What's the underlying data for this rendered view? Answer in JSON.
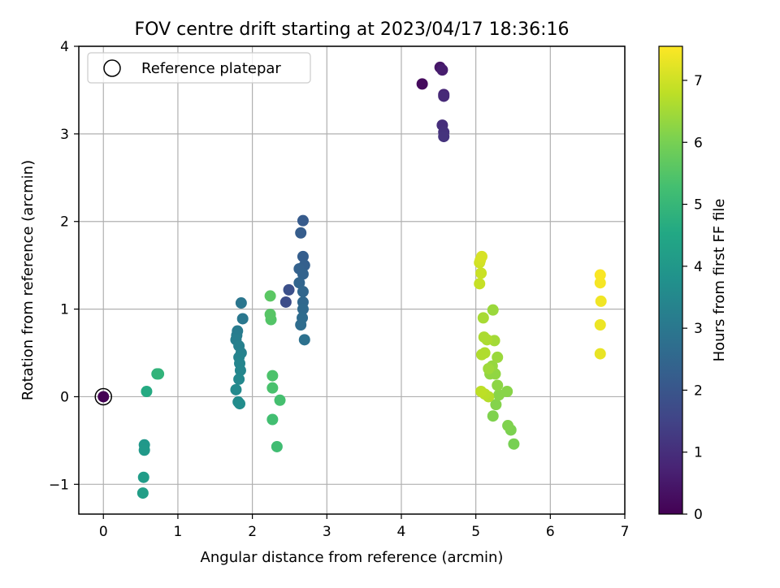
{
  "chart_data": {
    "type": "scatter",
    "title": "FOV centre drift starting at 2023/04/17 18:36:16",
    "xlabel": "Angular distance from reference (arcmin)",
    "ylabel": "Rotation from reference (arcmin)",
    "xlim": [
      -0.33,
      7.0
    ],
    "ylim": [
      -1.34,
      4.0
    ],
    "xticks": [
      0,
      1,
      2,
      3,
      4,
      5,
      6,
      7
    ],
    "yticks": [
      -1,
      0,
      1,
      2,
      3,
      4
    ],
    "xtick_labels": [
      "0",
      "1",
      "2",
      "3",
      "4",
      "5",
      "6",
      "7"
    ],
    "ytick_labels": [
      "−1",
      "0",
      "1",
      "2",
      "3",
      "4"
    ],
    "grid": true,
    "legend": {
      "placement": "top-left",
      "label": "Reference platepar"
    },
    "colormap": "viridis",
    "colorbar": {
      "label": "Hours from first FF file",
      "range": [
        0,
        7.55
      ],
      "ticks": [
        0,
        1,
        2,
        3,
        4,
        5,
        6,
        7
      ],
      "tick_labels": [
        "0",
        "1",
        "2",
        "3",
        "4",
        "5",
        "6",
        "7"
      ]
    },
    "reference_point": {
      "x": 0,
      "y": 0
    },
    "points": [
      {
        "x": 0.0,
        "y": 0.0,
        "c": 0.0
      },
      {
        "x": 4.28,
        "y": 3.57,
        "c": 0.2
      },
      {
        "x": 4.52,
        "y": 3.76,
        "c": 0.45
      },
      {
        "x": 4.55,
        "y": 3.73,
        "c": 0.6
      },
      {
        "x": 4.57,
        "y": 3.45,
        "c": 0.8
      },
      {
        "x": 4.57,
        "y": 3.43,
        "c": 0.9
      },
      {
        "x": 4.55,
        "y": 3.1,
        "c": 1.0
      },
      {
        "x": 4.57,
        "y": 3.02,
        "c": 1.05
      },
      {
        "x": 4.57,
        "y": 2.97,
        "c": 1.1
      },
      {
        "x": 2.45,
        "y": 1.08,
        "c": 1.75
      },
      {
        "x": 2.49,
        "y": 1.22,
        "c": 1.85
      },
      {
        "x": 2.68,
        "y": 2.01,
        "c": 2.15
      },
      {
        "x": 2.65,
        "y": 1.87,
        "c": 2.2
      },
      {
        "x": 2.68,
        "y": 1.6,
        "c": 2.25
      },
      {
        "x": 2.7,
        "y": 1.5,
        "c": 2.3
      },
      {
        "x": 2.63,
        "y": 1.46,
        "c": 2.35
      },
      {
        "x": 2.68,
        "y": 1.4,
        "c": 2.4
      },
      {
        "x": 2.63,
        "y": 1.3,
        "c": 2.45
      },
      {
        "x": 2.68,
        "y": 1.2,
        "c": 2.5
      },
      {
        "x": 2.68,
        "y": 1.08,
        "c": 2.55
      },
      {
        "x": 2.68,
        "y": 1.0,
        "c": 2.6
      },
      {
        "x": 2.67,
        "y": 0.9,
        "c": 2.65
      },
      {
        "x": 2.65,
        "y": 0.82,
        "c": 2.7
      },
      {
        "x": 2.7,
        "y": 0.65,
        "c": 2.8
      },
      {
        "x": 1.85,
        "y": 1.07,
        "c": 2.95
      },
      {
        "x": 1.87,
        "y": 0.89,
        "c": 3.0
      },
      {
        "x": 1.8,
        "y": 0.75,
        "c": 3.1
      },
      {
        "x": 1.79,
        "y": 0.7,
        "c": 3.15
      },
      {
        "x": 1.78,
        "y": 0.65,
        "c": 3.2
      },
      {
        "x": 1.82,
        "y": 0.58,
        "c": 3.25
      },
      {
        "x": 1.85,
        "y": 0.5,
        "c": 3.3
      },
      {
        "x": 1.82,
        "y": 0.45,
        "c": 3.35
      },
      {
        "x": 1.83,
        "y": 0.38,
        "c": 3.4
      },
      {
        "x": 1.84,
        "y": 0.3,
        "c": 3.45
      },
      {
        "x": 1.82,
        "y": 0.2,
        "c": 3.5
      },
      {
        "x": 1.78,
        "y": 0.08,
        "c": 3.55
      },
      {
        "x": 1.81,
        "y": -0.06,
        "c": 3.6
      },
      {
        "x": 1.83,
        "y": -0.08,
        "c": 3.65
      },
      {
        "x": 0.55,
        "y": -0.55,
        "c": 4.0
      },
      {
        "x": 0.55,
        "y": -0.61,
        "c": 4.05
      },
      {
        "x": 0.54,
        "y": -0.92,
        "c": 4.15
      },
      {
        "x": 0.53,
        "y": -1.1,
        "c": 4.2
      },
      {
        "x": 0.58,
        "y": 0.06,
        "c": 4.6
      },
      {
        "x": 0.72,
        "y": 0.26,
        "c": 4.85
      },
      {
        "x": 0.74,
        "y": 0.26,
        "c": 4.9
      },
      {
        "x": 2.33,
        "y": -0.57,
        "c": 5.2
      },
      {
        "x": 2.27,
        "y": -0.26,
        "c": 5.25
      },
      {
        "x": 2.37,
        "y": -0.04,
        "c": 5.3
      },
      {
        "x": 2.27,
        "y": 0.1,
        "c": 5.35
      },
      {
        "x": 2.27,
        "y": 0.24,
        "c": 5.4
      },
      {
        "x": 2.25,
        "y": 0.88,
        "c": 5.5
      },
      {
        "x": 2.24,
        "y": 0.94,
        "c": 5.55
      },
      {
        "x": 2.24,
        "y": 1.15,
        "c": 5.6
      },
      {
        "x": 5.51,
        "y": -0.54,
        "c": 6.0
      },
      {
        "x": 5.47,
        "y": -0.38,
        "c": 6.05
      },
      {
        "x": 5.43,
        "y": -0.33,
        "c": 6.1
      },
      {
        "x": 5.23,
        "y": -0.22,
        "c": 6.1
      },
      {
        "x": 5.27,
        "y": -0.09,
        "c": 6.15
      },
      {
        "x": 5.31,
        "y": 0.02,
        "c": 6.2
      },
      {
        "x": 5.42,
        "y": 0.06,
        "c": 6.2
      },
      {
        "x": 5.29,
        "y": 0.13,
        "c": 6.25
      },
      {
        "x": 5.26,
        "y": 0.26,
        "c": 6.3
      },
      {
        "x": 5.19,
        "y": 0.26,
        "c": 6.3
      },
      {
        "x": 5.22,
        "y": 0.35,
        "c": 6.35
      },
      {
        "x": 5.29,
        "y": 0.45,
        "c": 6.4
      },
      {
        "x": 5.17,
        "y": 0.32,
        "c": 6.45
      },
      {
        "x": 5.25,
        "y": 0.64,
        "c": 6.5
      },
      {
        "x": 5.23,
        "y": 0.99,
        "c": 6.4
      },
      {
        "x": 5.1,
        "y": 0.9,
        "c": 6.55
      },
      {
        "x": 5.11,
        "y": 0.68,
        "c": 6.6
      },
      {
        "x": 5.15,
        "y": 0.65,
        "c": 6.6
      },
      {
        "x": 5.12,
        "y": 0.5,
        "c": 6.65
      },
      {
        "x": 5.08,
        "y": 0.48,
        "c": 6.65
      },
      {
        "x": 5.17,
        "y": 0.0,
        "c": 6.7
      },
      {
        "x": 5.12,
        "y": 0.03,
        "c": 6.75
      },
      {
        "x": 5.07,
        "y": 0.06,
        "c": 6.8
      },
      {
        "x": 5.05,
        "y": 1.29,
        "c": 6.9
      },
      {
        "x": 5.07,
        "y": 1.41,
        "c": 6.95
      },
      {
        "x": 5.05,
        "y": 1.53,
        "c": 7.0
      },
      {
        "x": 5.06,
        "y": 1.56,
        "c": 7.05
      },
      {
        "x": 5.08,
        "y": 1.6,
        "c": 7.1
      },
      {
        "x": 6.67,
        "y": 0.49,
        "c": 7.3
      },
      {
        "x": 6.67,
        "y": 0.82,
        "c": 7.35
      },
      {
        "x": 6.68,
        "y": 1.09,
        "c": 7.4
      },
      {
        "x": 6.67,
        "y": 1.3,
        "c": 7.45
      },
      {
        "x": 6.67,
        "y": 1.39,
        "c": 7.5
      }
    ]
  }
}
